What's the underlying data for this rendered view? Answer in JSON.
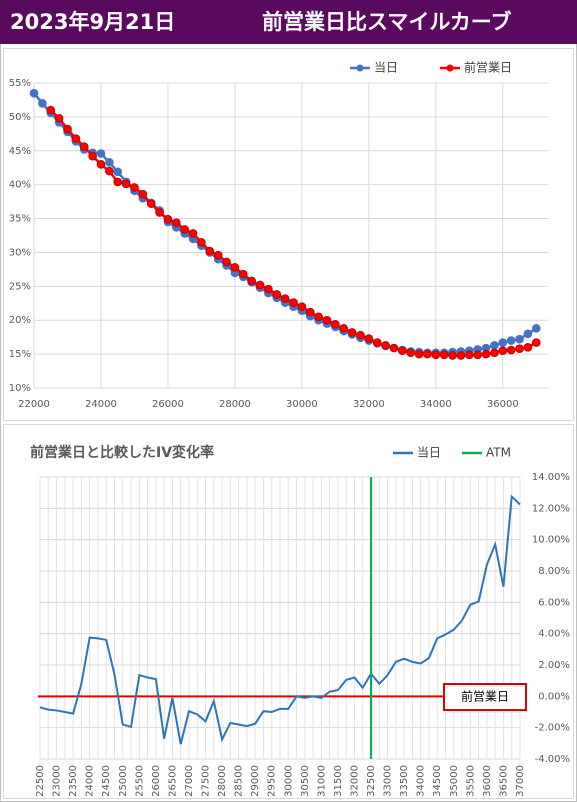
{
  "header": {
    "date": "2023年9月21日",
    "title": "前営業日比スマイルカーブ"
  },
  "chart_data": [
    {
      "type": "line",
      "legend": "top",
      "x": [
        22000,
        22250,
        22500,
        22750,
        23000,
        23250,
        23500,
        23750,
        24000,
        24250,
        24500,
        24750,
        25000,
        25250,
        25500,
        25750,
        26000,
        26250,
        26500,
        26750,
        27000,
        27250,
        27500,
        27750,
        28000,
        28250,
        28500,
        28750,
        29000,
        29250,
        29500,
        29750,
        30000,
        30250,
        30500,
        30750,
        31000,
        31250,
        31500,
        31750,
        32000,
        32250,
        32500,
        32750,
        33000,
        33250,
        33500,
        33750,
        34000,
        34250,
        34500,
        34750,
        35000,
        35250,
        35500,
        35750,
        36000,
        36250,
        36500,
        36750,
        37000
      ],
      "series": [
        {
          "name": "当日",
          "color": "#4472c4",
          "values": [
            53.5,
            52,
            50.6,
            49.2,
            47.8,
            46.4,
            45.2,
            44.7,
            44.6,
            43.3,
            41.9,
            40.4,
            39.1,
            38,
            37.3,
            36.2,
            34.5,
            33.7,
            32.8,
            32,
            31,
            30,
            29,
            28.1,
            27,
            26.4,
            25.6,
            24.8,
            24,
            23.3,
            22.6,
            22,
            21.4,
            20.6,
            20,
            19.5,
            19,
            18.4,
            17.9,
            17.4,
            17,
            16.6,
            16.2,
            15.9,
            15.6,
            15.4,
            15.3,
            15.2,
            15.2,
            15.2,
            15.3,
            15.4,
            15.5,
            15.7,
            15.9,
            16.3,
            16.7,
            17,
            17.2,
            18,
            18.8
          ]
        },
        {
          "name": "前営業日",
          "color": "#ff0000",
          "values": [
            null,
            null,
            51,
            49.8,
            48.2,
            46.8,
            45.6,
            44.2,
            43,
            42,
            40.4,
            40.1,
            39.6,
            38.6,
            37.2,
            35.9,
            34.9,
            34.4,
            33.4,
            32.8,
            31.5,
            30.2,
            29.6,
            28.6,
            27.8,
            26.8,
            25.8,
            25.2,
            24.6,
            23.8,
            23.2,
            22.6,
            22,
            21.2,
            20.5,
            20,
            19.4,
            18.8,
            18.2,
            17.8,
            17.3,
            16.7,
            16.3,
            15.9,
            15.5,
            15.2,
            15,
            15,
            14.9,
            14.9,
            14.8,
            14.8,
            14.9,
            14.9,
            15,
            15.2,
            15.5,
            15.6,
            15.8,
            16,
            16.7
          ]
        }
      ],
      "xlim": [
        22000,
        37350
      ],
      "xticks": [
        22000,
        24000,
        26000,
        28000,
        30000,
        32000,
        34000,
        36000
      ],
      "ylim": [
        10,
        55
      ],
      "yticks": [
        {
          "value": 10,
          "label": "10%"
        },
        {
          "value": 15,
          "label": "15%"
        },
        {
          "value": 20,
          "label": "20%"
        },
        {
          "value": 25,
          "label": "25%"
        },
        {
          "value": 30,
          "label": "30%"
        },
        {
          "value": 35,
          "label": "35%"
        },
        {
          "value": 40,
          "label": "40%"
        },
        {
          "value": 45,
          "label": "45%"
        },
        {
          "value": 50,
          "label": "50%"
        },
        {
          "value": 55,
          "label": "55%"
        }
      ],
      "grid": true
    },
    {
      "type": "line",
      "title": "前営業日と比較したIV変化率",
      "legend": "top",
      "categories": [
        "22500",
        null,
        "23000",
        null,
        "23500",
        null,
        "24000",
        null,
        "24500",
        null,
        "25000",
        null,
        "25500",
        null,
        "26000",
        null,
        "26500",
        null,
        "27000",
        null,
        "27500",
        null,
        "28000",
        null,
        "28500",
        null,
        "29000",
        null,
        "29500",
        null,
        "30000",
        null,
        "30500",
        null,
        "31000",
        null,
        "31500",
        null,
        "32000",
        null,
        "32500",
        null,
        "33000",
        null,
        "33500",
        null,
        "34000",
        null,
        "34500",
        null,
        "35000",
        null,
        "35500",
        null,
        "36000",
        null,
        "36500",
        null,
        "37000"
      ],
      "series": [
        {
          "name": "当日",
          "color": "#2e75b6",
          "axis": "y2",
          "values": [
            -0.7,
            -0.85,
            -0.9,
            -1.0,
            -1.1,
            0.8,
            3.75,
            3.7,
            3.6,
            1.4,
            -1.8,
            -1.95,
            1.35,
            1.2,
            1.1,
            -2.7,
            -0.1,
            -3.05,
            -0.95,
            -1.15,
            -1.6,
            -0.3,
            -2.75,
            -1.7,
            -1.8,
            -1.9,
            -1.75,
            -0.95,
            -1.0,
            -0.8,
            -0.8,
            0.0,
            -0.1,
            0.0,
            -0.1,
            0.3,
            0.4,
            1.05,
            1.2,
            0.55,
            1.45,
            0.8,
            1.35,
            2.2,
            2.4,
            2.2,
            2.1,
            2.45,
            3.7,
            3.95,
            4.25,
            4.85,
            5.85,
            6.05,
            8.4,
            9.7,
            7.0,
            12.75,
            12.25
          ]
        }
      ],
      "atm": {
        "name": "ATM",
        "color": "#00b050",
        "category": "32500"
      },
      "reference": {
        "label": "前営業日",
        "value": 0,
        "color": "#e00000"
      },
      "y2lim": [
        -4,
        14
      ],
      "y2ticks": [
        {
          "value": -4,
          "label": "-4.00%"
        },
        {
          "value": -2,
          "label": "-2.00%"
        },
        {
          "value": 0,
          "label": "0.00%"
        },
        {
          "value": 2,
          "label": "2.00%"
        },
        {
          "value": 4,
          "label": "4.00%"
        },
        {
          "value": 6,
          "label": "6.00%"
        },
        {
          "value": 8,
          "label": "8.00%"
        },
        {
          "value": 10,
          "label": "10.00%"
        },
        {
          "value": 12,
          "label": "12.00%"
        },
        {
          "value": 14,
          "label": "14.00%"
        }
      ],
      "grid": true
    }
  ]
}
